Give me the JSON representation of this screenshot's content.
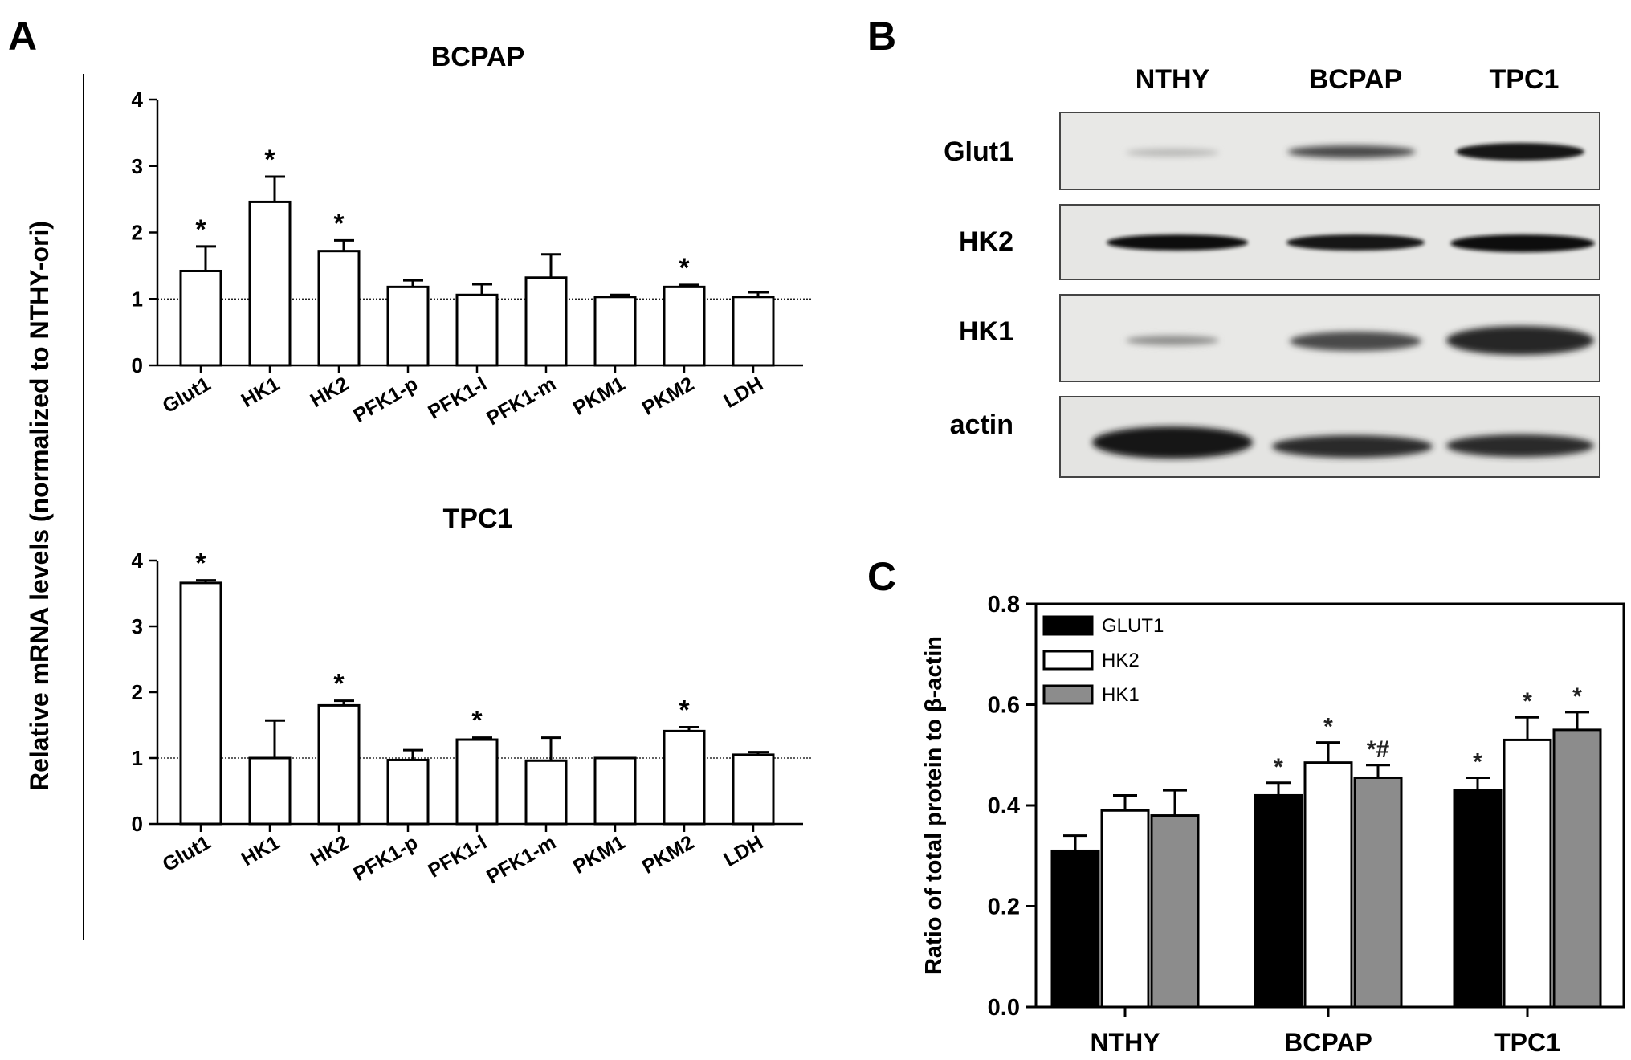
{
  "panels": {
    "a": "A",
    "b": "B",
    "c": "C"
  },
  "panel_a_ylabel": "Relative mRNA levels (normalized to NTHY-ori)",
  "blot": {
    "lanes": [
      "NTHY",
      "BCPAP",
      "TPC1"
    ],
    "rows": [
      "Glut1",
      "HK2",
      "HK1",
      "actin"
    ]
  },
  "chart_data": [
    {
      "type": "bar",
      "title": "BCPAP",
      "ylabel": "Relative mRNA levels (normalized to NTHY-ori)",
      "categories": [
        "Glut1",
        "HK1",
        "HK2",
        "PFK1-p",
        "PFK1-l",
        "PFK1-m",
        "PKM1",
        "PKM2",
        "LDH"
      ],
      "values": [
        1.42,
        2.46,
        1.72,
        1.18,
        1.06,
        1.32,
        1.03,
        1.18,
        1.03
      ],
      "errors": [
        0.37,
        0.38,
        0.16,
        0.1,
        0.16,
        0.35,
        0.03,
        0.03,
        0.07
      ],
      "significance": [
        "*",
        "*",
        "*",
        "",
        "",
        "",
        "",
        "*",
        ""
      ],
      "reference_line": 1,
      "ylim": [
        0,
        4
      ],
      "yticks": [
        0,
        1,
        2,
        3,
        4
      ]
    },
    {
      "type": "bar",
      "title": "TPC1",
      "ylabel": "Relative mRNA levels (normalized to NTHY-ori)",
      "categories": [
        "Glut1",
        "HK1",
        "HK2",
        "PFK1-p",
        "PFK1-l",
        "PFK1-m",
        "PKM1",
        "PKM2",
        "LDH"
      ],
      "values": [
        3.66,
        1.0,
        1.8,
        0.97,
        1.28,
        0.96,
        1.0,
        1.41,
        1.05
      ],
      "errors": [
        0.04,
        0.57,
        0.07,
        0.15,
        0.03,
        0.35,
        0.0,
        0.06,
        0.04
      ],
      "significance": [
        "*",
        "",
        "*",
        "",
        "*",
        "",
        "",
        "*",
        ""
      ],
      "reference_line": 1,
      "ylim": [
        0,
        4
      ],
      "yticks": [
        0,
        1,
        2,
        3,
        4
      ]
    },
    {
      "type": "bar",
      "title": "",
      "ylabel": "Ratio of total protein to β-actin",
      "categories": [
        "NTHY",
        "BCPAP",
        "TPC1"
      ],
      "series": [
        {
          "name": "GLUT1",
          "color": "#000000",
          "values": [
            0.31,
            0.42,
            0.43
          ],
          "errors": [
            0.03,
            0.025,
            0.025
          ],
          "significance": [
            "",
            "*",
            "*"
          ]
        },
        {
          "name": "HK2",
          "color": "#ffffff",
          "values": [
            0.39,
            0.485,
            0.53
          ],
          "errors": [
            0.03,
            0.04,
            0.045
          ],
          "significance": [
            "",
            "*",
            "*"
          ]
        },
        {
          "name": "HK1",
          "color": "#8c8c8c",
          "values": [
            0.38,
            0.455,
            0.55
          ],
          "errors": [
            0.05,
            0.025,
            0.035
          ],
          "significance": [
            "",
            "*#",
            "*"
          ]
        }
      ],
      "ylim": [
        0,
        0.8
      ],
      "yticks": [
        "0.0",
        "0.2",
        "0.4",
        "0.6",
        "0.8"
      ],
      "legend": "top-left"
    }
  ]
}
